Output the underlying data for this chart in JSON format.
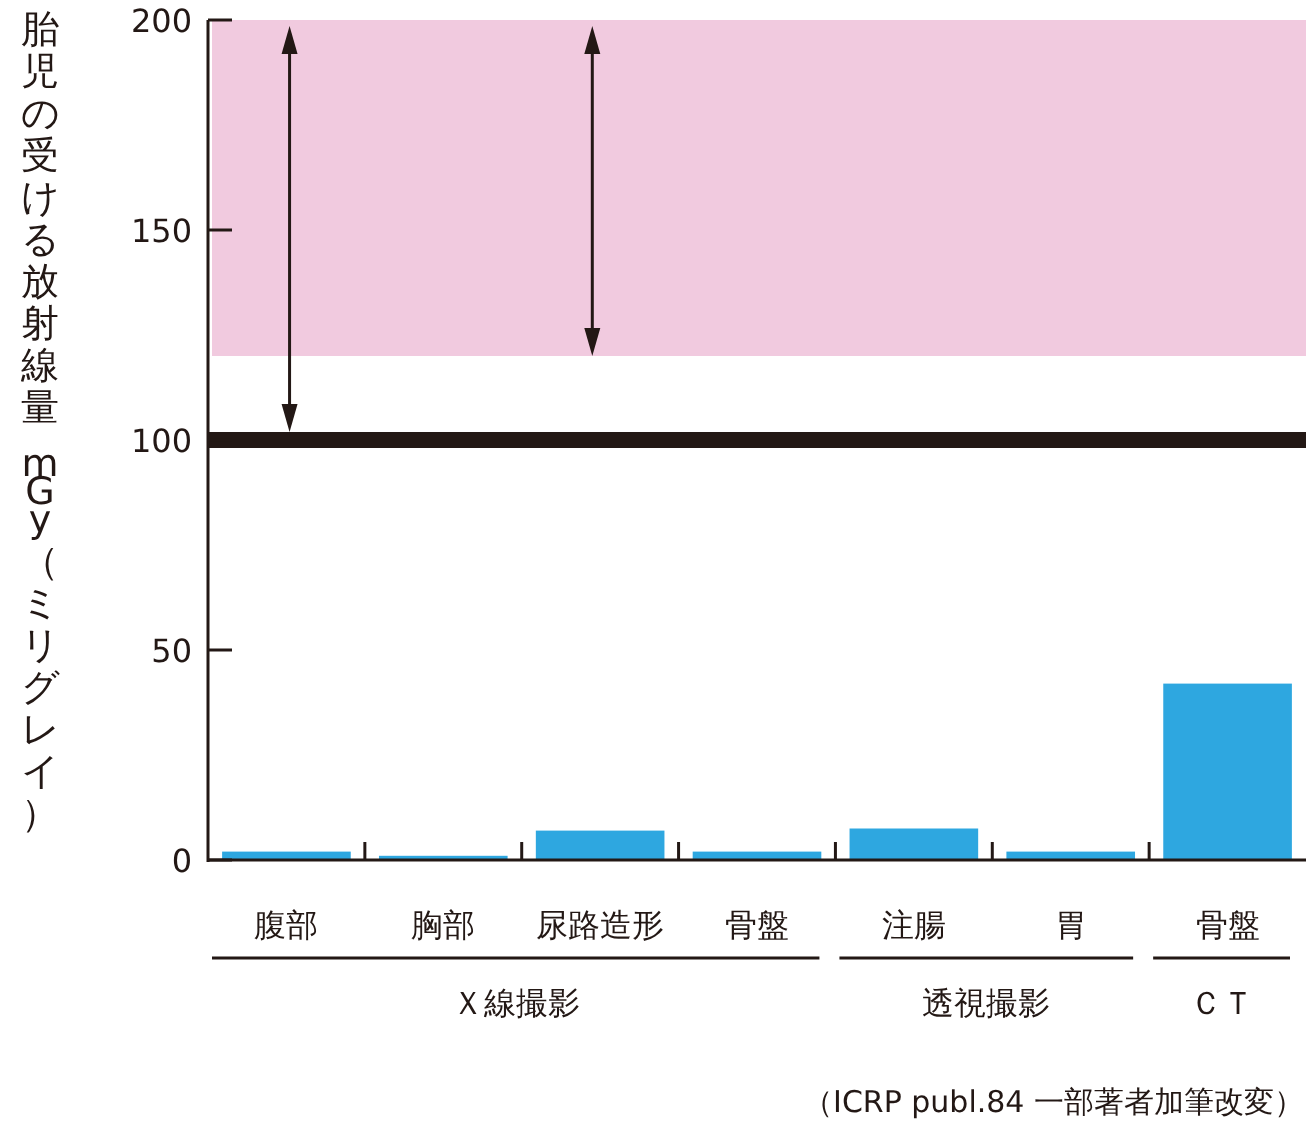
{
  "chart_data": {
    "type": "bar",
    "ylabel": "胎児の受ける放射線量 mGy（ミリグレイ）",
    "categories": [
      "腹部",
      "胸部",
      "尿路造形",
      "骨盤",
      "注腸",
      "胃",
      "骨盤"
    ],
    "values": [
      2,
      1,
      7,
      2,
      7.5,
      2,
      42
    ],
    "color": "#2ea7e0",
    "ylim": [
      0,
      200
    ],
    "yticks": [
      0,
      50,
      100,
      150,
      200
    ],
    "ref_lines": [
      {
        "axis": "y",
        "value": 100,
        "color": "#231815"
      }
    ],
    "bands": [
      {
        "axis": "y",
        "from": 120,
        "to": 200,
        "color": "#f1cadf"
      }
    ],
    "annotations": [
      "Ｘ線撮影",
      "透視撮影",
      "ＣＴ",
      "（ICRP publ.84 一部著者加筆改変）"
    ]
  }
}
